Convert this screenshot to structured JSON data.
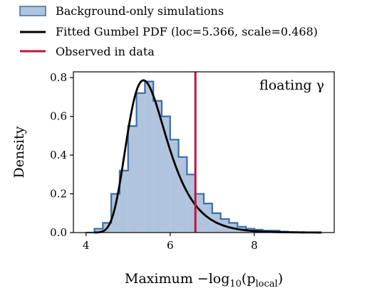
{
  "chart_data": {
    "type": "histogram",
    "annotation": "floating γ",
    "xlabel_parts": {
      "pre": "Maximum −log",
      "sub": "10",
      "mid": "(p",
      "sub2": "local",
      "post": ")"
    },
    "ylabel": "Density",
    "xlim": [
      3.7,
      9.9
    ],
    "ylim": [
      0.0,
      0.83
    ],
    "x_ticks": [
      4,
      6,
      8
    ],
    "y_ticks": [
      0.0,
      0.2,
      0.4,
      0.6,
      0.8
    ],
    "y_tick_labels": [
      "0.0",
      "0.2",
      "0.4",
      "0.6",
      "0.8"
    ],
    "legend": [
      {
        "label": "Background-only simulations",
        "kind": "patch",
        "color": "#b0c4de",
        "edge": "#3a6ea8"
      },
      {
        "label": "Fitted Gumbel PDF (loc=5.366, scale=0.468)",
        "kind": "line",
        "color": "#000000"
      },
      {
        "label": "Observed in data",
        "kind": "line",
        "color": "#c0143c"
      }
    ],
    "histogram": {
      "bin_edges": [
        4.0,
        4.2,
        4.4,
        4.6,
        4.8,
        5.0,
        5.2,
        5.4,
        5.6,
        5.8,
        6.0,
        6.2,
        6.4,
        6.6,
        6.8,
        7.0,
        7.2,
        7.4,
        7.6,
        7.8,
        8.0,
        8.2,
        8.4,
        8.6,
        8.8,
        9.0,
        9.2,
        9.4,
        9.6
      ],
      "values": [
        0.0,
        0.02,
        0.05,
        0.2,
        0.32,
        0.55,
        0.72,
        0.78,
        0.68,
        0.6,
        0.48,
        0.39,
        0.3,
        0.2,
        0.15,
        0.1,
        0.07,
        0.05,
        0.03,
        0.02,
        0.015,
        0.01,
        0.01,
        0.005,
        0.003,
        0.002,
        0.001,
        0.0
      ],
      "fill": "#b0c4de",
      "edge": "#3a6ea8"
    },
    "gumbel_fit": {
      "loc": 5.366,
      "scale": 0.468,
      "x_range": [
        4.2,
        9.6
      ],
      "color": "#000000"
    },
    "observed": {
      "x": 6.6,
      "color": "#c0143c"
    }
  }
}
